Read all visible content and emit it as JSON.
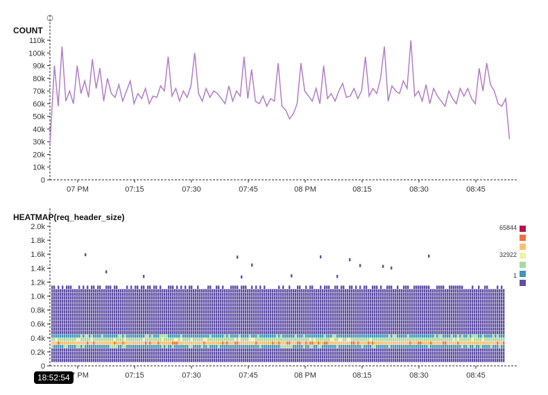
{
  "cursor_time": "18:52:54",
  "chart_data": [
    {
      "type": "line",
      "title": "COUNT",
      "color": "#b07cc6",
      "ylim": [
        0,
        110000
      ],
      "yticks": [
        "0",
        "10k",
        "20k",
        "30k",
        "40k",
        "50k",
        "60k",
        "70k",
        "80k",
        "90k",
        "100k",
        "110k"
      ],
      "xticks": [
        "07 PM",
        "07:15",
        "07:30",
        "07:45",
        "08 PM",
        "08:15",
        "08:30",
        "08:45"
      ],
      "x_start": "18:53",
      "x_interval_minutes": 1,
      "values": [
        28000,
        90000,
        58000,
        105000,
        62000,
        70000,
        60000,
        90000,
        68000,
        78000,
        65000,
        95000,
        72000,
        88000,
        62000,
        80000,
        68000,
        65000,
        75000,
        62000,
        70000,
        78000,
        60000,
        68000,
        64000,
        72000,
        60000,
        66000,
        65000,
        74000,
        70000,
        97000,
        66000,
        72000,
        62000,
        70000,
        65000,
        74000,
        100000,
        68000,
        62000,
        72000,
        65000,
        70000,
        68000,
        64000,
        60000,
        74000,
        62000,
        70000,
        66000,
        97000,
        64000,
        87000,
        62000,
        60000,
        66000,
        58000,
        64000,
        62000,
        92000,
        58000,
        55000,
        48000,
        52000,
        60000,
        92000,
        70000,
        66000,
        62000,
        72000,
        60000,
        90000,
        64000,
        68000,
        62000,
        70000,
        76000,
        65000,
        66000,
        72000,
        64000,
        70000,
        97000,
        66000,
        72000,
        68000,
        80000,
        105000,
        62000,
        74000,
        70000,
        68000,
        78000,
        72000,
        110000,
        66000,
        70000,
        62000,
        75000,
        60000,
        72000,
        66000,
        62000,
        58000,
        70000,
        64000,
        60000,
        72000,
        66000,
        72000,
        64000,
        60000,
        88000,
        70000,
        92000,
        75000,
        70000,
        60000,
        58000,
        64000,
        32000
      ]
    },
    {
      "type": "heatmap",
      "title": "HEATMAP(req_header_size)",
      "ylim": [
        0,
        2000
      ],
      "yticks": [
        "0",
        "0.2k",
        "0.4k",
        "0.6k",
        "0.8k",
        "1.0k",
        "1.2k",
        "1.4k",
        "1.6k",
        "1.8k",
        "2.0k"
      ],
      "xticks": [
        "07 PM",
        "07:15",
        "07:30",
        "07:45",
        "08 PM",
        "08:15",
        "08:30",
        "08:45"
      ],
      "legend": {
        "labels": [
          "65844",
          "32922",
          "1"
        ],
        "placement": "right"
      },
      "color_scale": [
        "#5e4fa2",
        "#3f96b7",
        "#a9d9a2",
        "#eef3a3",
        "#fdbf6f",
        "#f46d43",
        "#b5164a"
      ],
      "bin_size": 50,
      "bin_level_profile": [
        0,
        1,
        1,
        1,
        1,
        2,
        5,
        3,
        2,
        1,
        1,
        1,
        1,
        1,
        1,
        1,
        1,
        1,
        1,
        1,
        1,
        1,
        1,
        0
      ]
    }
  ]
}
